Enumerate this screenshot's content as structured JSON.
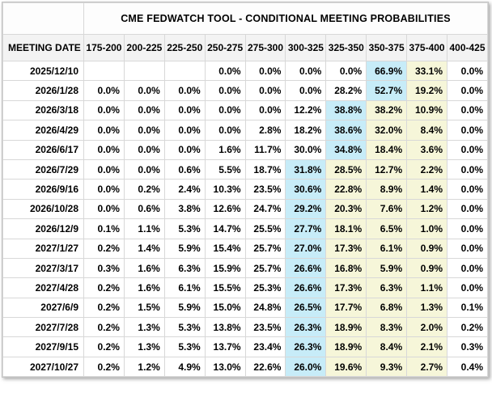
{
  "table": {
    "title": "CME FEDWATCH TOOL - CONDITIONAL MEETING PROBABILITIES",
    "date_column_header": "MEETING DATE",
    "rate_range_headers": [
      "175-200",
      "200-225",
      "225-250",
      "250-275",
      "275-300",
      "300-325",
      "325-350",
      "350-375",
      "375-400",
      "400-425"
    ],
    "rows": [
      {
        "date": "2025/12/10",
        "values": [
          "",
          "",
          "",
          "0.0%",
          "0.0%",
          "0.0%",
          "0.0%",
          "66.9%",
          "33.1%",
          "0.0%"
        ],
        "max_index": 7,
        "range_indices": [
          8
        ]
      },
      {
        "date": "2026/1/28",
        "values": [
          "0.0%",
          "0.0%",
          "0.0%",
          "0.0%",
          "0.0%",
          "0.0%",
          "28.2%",
          "52.7%",
          "19.2%",
          "0.0%"
        ],
        "max_index": 7,
        "range_indices": [
          8
        ]
      },
      {
        "date": "2026/3/18",
        "values": [
          "0.0%",
          "0.0%",
          "0.0%",
          "0.0%",
          "0.0%",
          "12.2%",
          "38.8%",
          "38.2%",
          "10.9%",
          "0.0%"
        ],
        "max_index": 6,
        "range_indices": [
          7,
          8
        ]
      },
      {
        "date": "2026/4/29",
        "values": [
          "0.0%",
          "0.0%",
          "0.0%",
          "0.0%",
          "2.8%",
          "18.2%",
          "38.6%",
          "32.0%",
          "8.4%",
          "0.0%"
        ],
        "max_index": 6,
        "range_indices": [
          7,
          8
        ]
      },
      {
        "date": "2026/6/17",
        "values": [
          "0.0%",
          "0.0%",
          "0.0%",
          "1.6%",
          "11.7%",
          "30.0%",
          "34.8%",
          "18.4%",
          "3.6%",
          "0.0%"
        ],
        "max_index": 6,
        "range_indices": [
          7,
          8
        ]
      },
      {
        "date": "2026/7/29",
        "values": [
          "0.0%",
          "0.0%",
          "0.6%",
          "5.5%",
          "18.7%",
          "31.8%",
          "28.5%",
          "12.7%",
          "2.2%",
          "0.0%"
        ],
        "max_index": 5,
        "range_indices": [
          6,
          7,
          8
        ]
      },
      {
        "date": "2026/9/16",
        "values": [
          "0.0%",
          "0.2%",
          "2.4%",
          "10.3%",
          "23.5%",
          "30.6%",
          "22.8%",
          "8.9%",
          "1.4%",
          "0.0%"
        ],
        "max_index": 5,
        "range_indices": [
          6,
          7,
          8
        ]
      },
      {
        "date": "2026/10/28",
        "values": [
          "0.0%",
          "0.6%",
          "3.8%",
          "12.6%",
          "24.7%",
          "29.2%",
          "20.3%",
          "7.6%",
          "1.2%",
          "0.0%"
        ],
        "max_index": 5,
        "range_indices": [
          6,
          7,
          8
        ]
      },
      {
        "date": "2026/12/9",
        "values": [
          "0.1%",
          "1.1%",
          "5.3%",
          "14.7%",
          "25.5%",
          "27.7%",
          "18.1%",
          "6.5%",
          "1.0%",
          "0.0%"
        ],
        "max_index": 5,
        "range_indices": [
          6,
          7,
          8
        ]
      },
      {
        "date": "2027/1/27",
        "values": [
          "0.2%",
          "1.4%",
          "5.9%",
          "15.4%",
          "25.7%",
          "27.0%",
          "17.3%",
          "6.1%",
          "0.9%",
          "0.0%"
        ],
        "max_index": 5,
        "range_indices": [
          6,
          7,
          8
        ]
      },
      {
        "date": "2027/3/17",
        "values": [
          "0.3%",
          "1.6%",
          "6.3%",
          "15.9%",
          "25.7%",
          "26.6%",
          "16.8%",
          "5.9%",
          "0.9%",
          "0.0%"
        ],
        "max_index": 5,
        "range_indices": [
          6,
          7,
          8
        ]
      },
      {
        "date": "2027/4/28",
        "values": [
          "0.2%",
          "1.6%",
          "6.1%",
          "15.5%",
          "25.3%",
          "26.6%",
          "17.3%",
          "6.3%",
          "1.1%",
          "0.0%"
        ],
        "max_index": 5,
        "range_indices": [
          6,
          7,
          8
        ]
      },
      {
        "date": "2027/6/9",
        "values": [
          "0.2%",
          "1.5%",
          "5.9%",
          "15.0%",
          "24.8%",
          "26.5%",
          "17.7%",
          "6.8%",
          "1.3%",
          "0.1%"
        ],
        "max_index": 5,
        "range_indices": [
          6,
          7,
          8
        ]
      },
      {
        "date": "2027/7/28",
        "values": [
          "0.2%",
          "1.3%",
          "5.3%",
          "13.8%",
          "23.5%",
          "26.3%",
          "18.9%",
          "8.3%",
          "2.0%",
          "0.2%"
        ],
        "max_index": 5,
        "range_indices": [
          6,
          7,
          8
        ]
      },
      {
        "date": "2027/9/15",
        "values": [
          "0.2%",
          "1.3%",
          "5.3%",
          "13.7%",
          "23.4%",
          "26.3%",
          "18.9%",
          "8.4%",
          "2.1%",
          "0.3%"
        ],
        "max_index": 5,
        "range_indices": [
          6,
          7,
          8
        ]
      },
      {
        "date": "2027/10/27",
        "values": [
          "0.2%",
          "1.2%",
          "4.9%",
          "13.0%",
          "22.6%",
          "26.0%",
          "19.6%",
          "9.3%",
          "2.7%",
          "0.4%"
        ],
        "max_index": 5,
        "range_indices": [
          6,
          7,
          8
        ]
      }
    ]
  },
  "colors": {
    "max_probability_highlight": "#c7ecf8",
    "range_highlight": "#f6f6d9",
    "header_background": "#f3f3f3",
    "grid_border": "#d8d8d8"
  }
}
